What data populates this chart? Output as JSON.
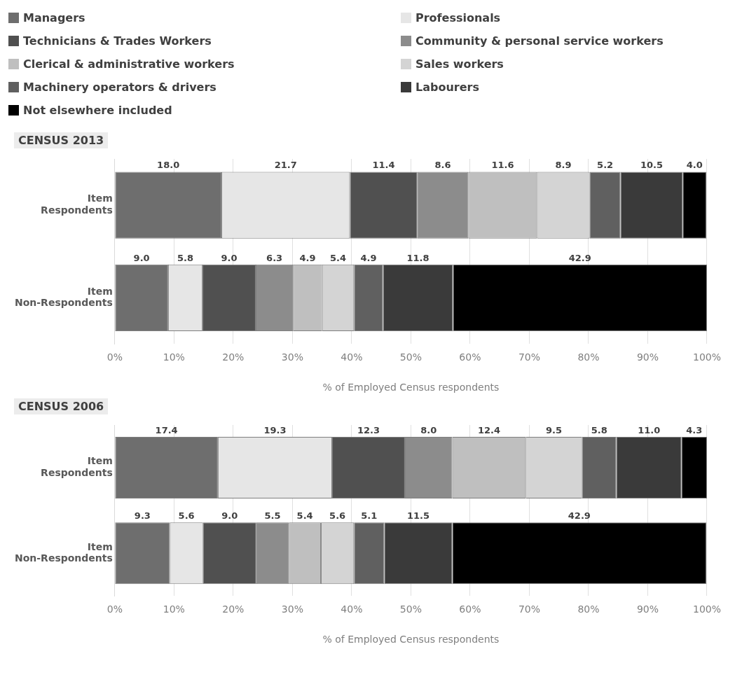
{
  "chart_data": [
    {
      "type": "bar",
      "title": "CENSUS 2013",
      "orientation": "horizontal",
      "stacked": true,
      "legend": "top",
      "grid": "x",
      "xlabel": "% of Employed Census respondents",
      "categories": [
        "Item Respondents",
        "Item Non-Respondents"
      ],
      "xlim": [
        0,
        100
      ],
      "xticks": [
        {
          "value": 0,
          "label": "0%"
        },
        {
          "value": 10,
          "label": "10%"
        },
        {
          "value": 20,
          "label": "20%"
        },
        {
          "value": 30,
          "label": "30%"
        },
        {
          "value": 40,
          "label": "40%"
        },
        {
          "value": 50,
          "label": "50%"
        },
        {
          "value": 60,
          "label": "60%"
        },
        {
          "value": 70,
          "label": "70%"
        },
        {
          "value": 80,
          "label": "80%"
        },
        {
          "value": 90,
          "label": "90%"
        },
        {
          "value": 100,
          "label": "100%"
        }
      ],
      "series": [
        {
          "name": "Managers",
          "color": "#6e6e6e",
          "values": [
            18.0,
            9.0
          ],
          "value_labels": [
            "18.0",
            "9.0"
          ]
        },
        {
          "name": "Professionals",
          "color": "#e6e6e6",
          "values": [
            21.7,
            5.8
          ],
          "value_labels": [
            "21.7",
            "5.8"
          ]
        },
        {
          "name": "Technicians & Trades Workers",
          "color": "#505050",
          "values": [
            11.4,
            9.0
          ],
          "value_labels": [
            "11.4",
            "9.0"
          ]
        },
        {
          "name": "Community & personal service workers",
          "color": "#8c8c8c",
          "values": [
            8.6,
            6.3
          ],
          "value_labels": [
            "8.6",
            "6.3"
          ]
        },
        {
          "name": "Clerical & administrative workers",
          "color": "#bfbfbf",
          "values": [
            11.6,
            4.9
          ],
          "value_labels": [
            "11.6",
            "4.9"
          ]
        },
        {
          "name": "Sales workers",
          "color": "#d4d4d4",
          "values": [
            8.9,
            5.4
          ],
          "value_labels": [
            "8.9",
            "5.4"
          ]
        },
        {
          "name": "Machinery operators & drivers",
          "color": "#606060",
          "values": [
            5.2,
            4.9
          ],
          "value_labels": [
            "5.2",
            "4.9"
          ]
        },
        {
          "name": "Labourers",
          "color": "#3a3a3a",
          "values": [
            10.5,
            11.8
          ],
          "value_labels": [
            "10.5",
            "11.8"
          ]
        },
        {
          "name": "Not elsewhere included",
          "color": "#000000",
          "values": [
            4.0,
            42.9
          ],
          "value_labels": [
            "4.0",
            "42.9"
          ]
        }
      ]
    },
    {
      "type": "bar",
      "title": "CENSUS 2006",
      "orientation": "horizontal",
      "stacked": true,
      "grid": "x",
      "xlabel": "% of Employed Census respondents",
      "categories": [
        "Item Respondents",
        "Item Non-Respondents"
      ],
      "xlim": [
        0,
        100
      ],
      "xticks": [
        {
          "value": 0,
          "label": "0%"
        },
        {
          "value": 10,
          "label": "10%"
        },
        {
          "value": 20,
          "label": "20%"
        },
        {
          "value": 30,
          "label": "30%"
        },
        {
          "value": 40,
          "label": "40%"
        },
        {
          "value": 50,
          "label": "50%"
        },
        {
          "value": 60,
          "label": "60%"
        },
        {
          "value": 70,
          "label": "70%"
        },
        {
          "value": 80,
          "label": "80%"
        },
        {
          "value": 90,
          "label": "90%"
        },
        {
          "value": 100,
          "label": "100%"
        }
      ],
      "series": [
        {
          "color": "#6e6e6e",
          "values": [
            17.4,
            9.3
          ],
          "value_labels": [
            "17.4",
            "9.3"
          ]
        },
        {
          "color": "#e6e6e6",
          "values": [
            19.3,
            5.6
          ],
          "value_labels": [
            "19.3",
            "5.6"
          ]
        },
        {
          "color": "#505050",
          "values": [
            12.3,
            9.0
          ],
          "value_labels": [
            "12.3",
            "9.0"
          ]
        },
        {
          "color": "#8c8c8c",
          "values": [
            8.0,
            5.5
          ],
          "value_labels": [
            "8.0",
            "5.5"
          ]
        },
        {
          "color": "#bfbfbf",
          "values": [
            12.4,
            5.4
          ],
          "value_labels": [
            "12.4",
            "5.4"
          ]
        },
        {
          "color": "#d4d4d4",
          "values": [
            9.5,
            5.6
          ],
          "value_labels": [
            "9.5",
            "5.6"
          ]
        },
        {
          "color": "#606060",
          "values": [
            5.8,
            5.1
          ],
          "value_labels": [
            "5.8",
            "5.1"
          ]
        },
        {
          "color": "#3a3a3a",
          "values": [
            11.0,
            11.5
          ],
          "value_labels": [
            "11.0",
            "11.5"
          ]
        },
        {
          "color": "#000000",
          "values": [
            4.3,
            42.9
          ],
          "value_labels": [
            "4.3",
            "42.9"
          ]
        }
      ]
    }
  ]
}
